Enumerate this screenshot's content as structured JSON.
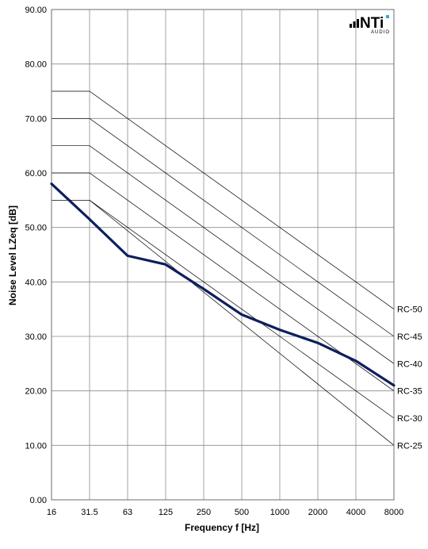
{
  "chart_data": {
    "type": "line",
    "xlabel": "Frequency f [Hz]",
    "ylabel": "Noise Level LZeq [dB]",
    "x_categories": [
      "16",
      "31.5",
      "63",
      "125",
      "250",
      "500",
      "1000",
      "2000",
      "4000",
      "8000"
    ],
    "ylim": [
      0,
      90
    ],
    "y_ticks": [
      "0.00",
      "10.00",
      "20.00",
      "30.00",
      "40.00",
      "50.00",
      "60.00",
      "70.00",
      "80.00",
      "90.00"
    ],
    "grid": true,
    "measured_series": {
      "color": "#0d1f5c",
      "points": [
        {
          "x": "16",
          "y": 58.0
        },
        {
          "x": "31.5",
          "y": 51.5
        },
        {
          "x": "63",
          "y": 44.8
        },
        {
          "x": "125",
          "y": 43.2
        },
        {
          "x": "250",
          "y": 38.7
        },
        {
          "x": "500",
          "y": 34.0
        },
        {
          "x": "1000",
          "y": 31.2
        },
        {
          "x": "2000",
          "y": 28.8
        },
        {
          "x": "4000",
          "y": 25.5
        },
        {
          "x": "8000",
          "y": 21.0
        }
      ]
    },
    "rc_curves": [
      {
        "label": "RC-50",
        "plateau": 75,
        "end": 35
      },
      {
        "label": "RC-45",
        "plateau": 70,
        "end": 30
      },
      {
        "label": "RC-40",
        "plateau": 65,
        "end": 25
      },
      {
        "label": "RC-35",
        "plateau": 60,
        "end": 20
      },
      {
        "label": "RC-30",
        "plateau": 55,
        "end": 15
      },
      {
        "label": "RC-25",
        "plateau": 55,
        "end": 10
      }
    ]
  },
  "logo": {
    "main_text": "NTi",
    "sub_text": "AUDIO"
  }
}
